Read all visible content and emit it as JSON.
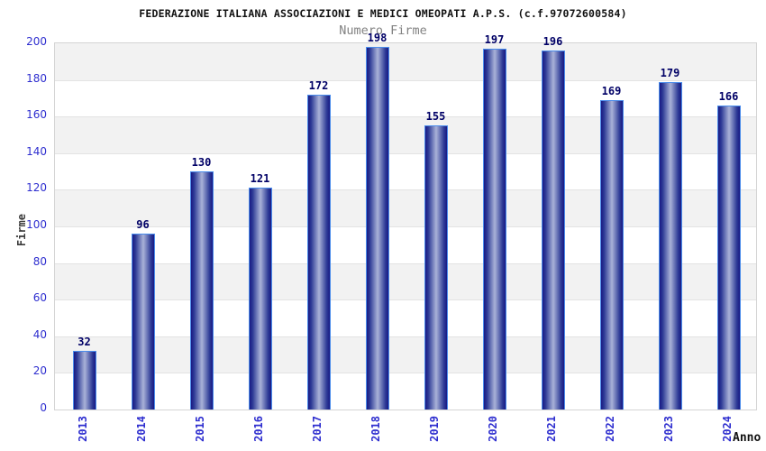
{
  "header": {
    "title": "FEDERAZIONE ITALIANA ASSOCIAZIONI E MEDICI OMEOPATI A.P.S. (c.f.97072600584)",
    "subtitle": "Numero Firme"
  },
  "axes": {
    "y_title": "Firme",
    "x_title": "Anno"
  },
  "chart_data": {
    "type": "bar",
    "title": "FEDERAZIONE ITALIANA ASSOCIAZIONI E MEDICI OMEOPATI A.P.S. (c.f.97072600584)",
    "subtitle": "Numero Firme",
    "categories": [
      "2013",
      "2014",
      "2015",
      "2016",
      "2017",
      "2018",
      "2019",
      "2020",
      "2021",
      "2022",
      "2023",
      "2024"
    ],
    "values": [
      32,
      96,
      130,
      121,
      172,
      198,
      155,
      197,
      196,
      169,
      179,
      166
    ],
    "xlabel": "Anno",
    "ylabel": "Firme",
    "ylim": [
      0,
      200
    ],
    "ytick_step": 20,
    "yticks": [
      0,
      20,
      40,
      60,
      80,
      100,
      120,
      140,
      160,
      180,
      200
    ],
    "grid": true,
    "grid_style": "alternating-horizontal-bands",
    "legend": false,
    "value_labels_shown": true
  },
  "style": {
    "title_color": "#111111",
    "subtitle_color": "#828282",
    "tick_color": "#2e2ecf",
    "value_label_color": "#000066",
    "y_title_color": "#3a3a3a",
    "x_title_color": "#111111",
    "band_gray": "#f2f2f2",
    "band_white": "#ffffff",
    "grid_line": "#e3e3e3",
    "plot_border": "#d4d4d4",
    "bar_border": "#4a8ceb",
    "bar_dark": "#191983",
    "bar_mid": "#2d3a96",
    "bar_light": "#a9b2d8"
  }
}
